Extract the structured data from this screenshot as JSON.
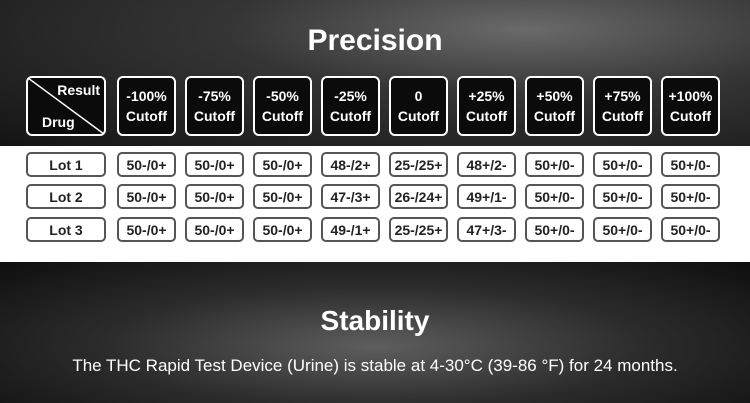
{
  "precision": {
    "title": "Precision"
  },
  "table": {
    "corner": {
      "result": "Result",
      "drug": "Drug"
    },
    "columns": [
      {
        "line1": "-100%",
        "line2": "Cutoff"
      },
      {
        "line1": "-75%",
        "line2": "Cutoff"
      },
      {
        "line1": "-50%",
        "line2": "Cutoff"
      },
      {
        "line1": "-25%",
        "line2": "Cutoff"
      },
      {
        "line1": "0",
        "line2": "Cutoff"
      },
      {
        "line1": "+25%",
        "line2": "Cutoff"
      },
      {
        "line1": "+50%",
        "line2": "Cutoff"
      },
      {
        "line1": "+75%",
        "line2": "Cutoff"
      },
      {
        "line1": "+100%",
        "line2": "Cutoff"
      }
    ],
    "rows": [
      {
        "label": "Lot 1",
        "cells": [
          "50-/0+",
          "50-/0+",
          "50-/0+",
          "48-/2+",
          "25-/25+",
          "48+/2-",
          "50+/0-",
          "50+/0-",
          "50+/0-"
        ]
      },
      {
        "label": "Lot 2",
        "cells": [
          "50-/0+",
          "50-/0+",
          "50-/0+",
          "47-/3+",
          "26-/24+",
          "49+/1-",
          "50+/0-",
          "50+/0-",
          "50+/0-"
        ]
      },
      {
        "label": "Lot 3",
        "cells": [
          "50-/0+",
          "50-/0+",
          "50-/0+",
          "49-/1+",
          "25-/25+",
          "47+/3-",
          "50+/0-",
          "50+/0-",
          "50+/0-"
        ]
      }
    ]
  },
  "stability": {
    "title": "Stability",
    "text": "The THC Rapid Test Device (Urine) is stable at 4-30°C (39-86 °F) for 24 months."
  }
}
